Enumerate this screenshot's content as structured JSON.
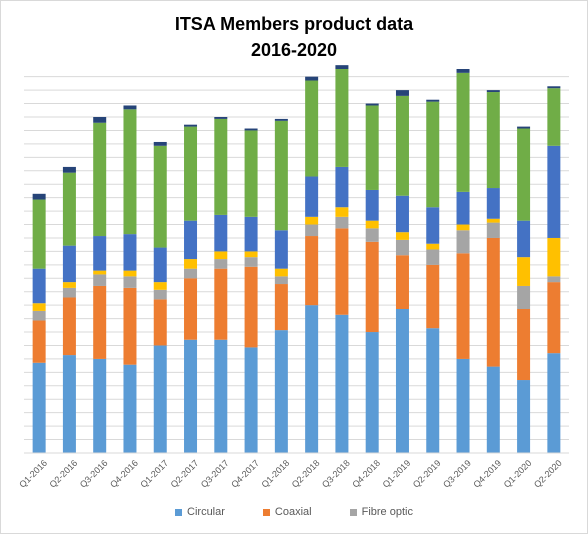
{
  "chart_data": {
    "type": "bar",
    "stacked": true,
    "title": "ITSA Members product data",
    "subtitle": "2016-2020",
    "xlabel": "",
    "ylabel": "",
    "ylim": [
      0,
      100
    ],
    "grid": true,
    "legend_position": "bottom",
    "categories": [
      "Q1-2016",
      "Q2-2016",
      "Q3-2016",
      "Q4-2016",
      "Q1-2017",
      "Q2-2017",
      "Q3-2017",
      "Q4-2017",
      "Q1-2018",
      "Q2-2018",
      "Q3-2018",
      "Q4-2018",
      "Q1-2019",
      "Q2-2019",
      "Q3-2019",
      "Q4-2019",
      "Q1-2020",
      "Q2-2020"
    ],
    "series": [
      {
        "name": "Circular",
        "color": "#5b9bd5",
        "values": [
          23.5,
          25.5,
          24.5,
          23.0,
          28.0,
          29.5,
          29.5,
          27.5,
          32.0,
          38.5,
          36.0,
          31.5,
          37.5,
          32.5,
          24.5,
          22.5,
          19.0,
          26.0
        ]
      },
      {
        "name": "Coaxial",
        "color": "#ed7d31",
        "values": [
          11.0,
          15.0,
          19.0,
          20.0,
          12.0,
          16.0,
          18.5,
          21.0,
          12.0,
          18.0,
          22.5,
          23.5,
          14.0,
          16.5,
          27.5,
          33.5,
          18.5,
          18.5
        ]
      },
      {
        "name": "Fibre optic",
        "color": "#a5a5a5",
        "values": [
          2.5,
          2.5,
          3.0,
          3.0,
          2.5,
          2.5,
          2.5,
          2.5,
          2.0,
          3.0,
          3.0,
          3.5,
          4.0,
          4.0,
          6.0,
          4.0,
          6.0,
          1.5
        ]
      },
      {
        "name": "",
        "color": "#ffc000",
        "values": [
          2.0,
          1.5,
          1.0,
          1.5,
          2.0,
          2.5,
          2.0,
          1.5,
          2.0,
          2.0,
          2.5,
          2.0,
          2.0,
          1.5,
          1.5,
          1.0,
          7.5,
          10.0
        ]
      },
      {
        "name": "",
        "color": "#4472c4",
        "values": [
          9.0,
          9.5,
          9.0,
          9.5,
          9.0,
          10.0,
          9.5,
          9.0,
          10.0,
          10.5,
          10.5,
          8.0,
          9.5,
          9.5,
          8.5,
          8.0,
          9.5,
          24.0
        ]
      },
      {
        "name": "",
        "color": "#70ad47",
        "values": [
          18.0,
          19.0,
          29.5,
          32.5,
          26.5,
          24.5,
          25.0,
          22.5,
          28.5,
          25.0,
          25.5,
          22.0,
          26.0,
          27.5,
          31.0,
          25.0,
          24.0,
          15.0
        ]
      },
      {
        "name": "",
        "color": "#264478",
        "values": [
          1.5,
          1.5,
          1.5,
          1.0,
          1.0,
          0.5,
          0.5,
          0.5,
          0.5,
          1.0,
          1.0,
          0.5,
          1.5,
          0.5,
          1.0,
          0.5,
          0.5,
          0.5
        ]
      }
    ]
  }
}
